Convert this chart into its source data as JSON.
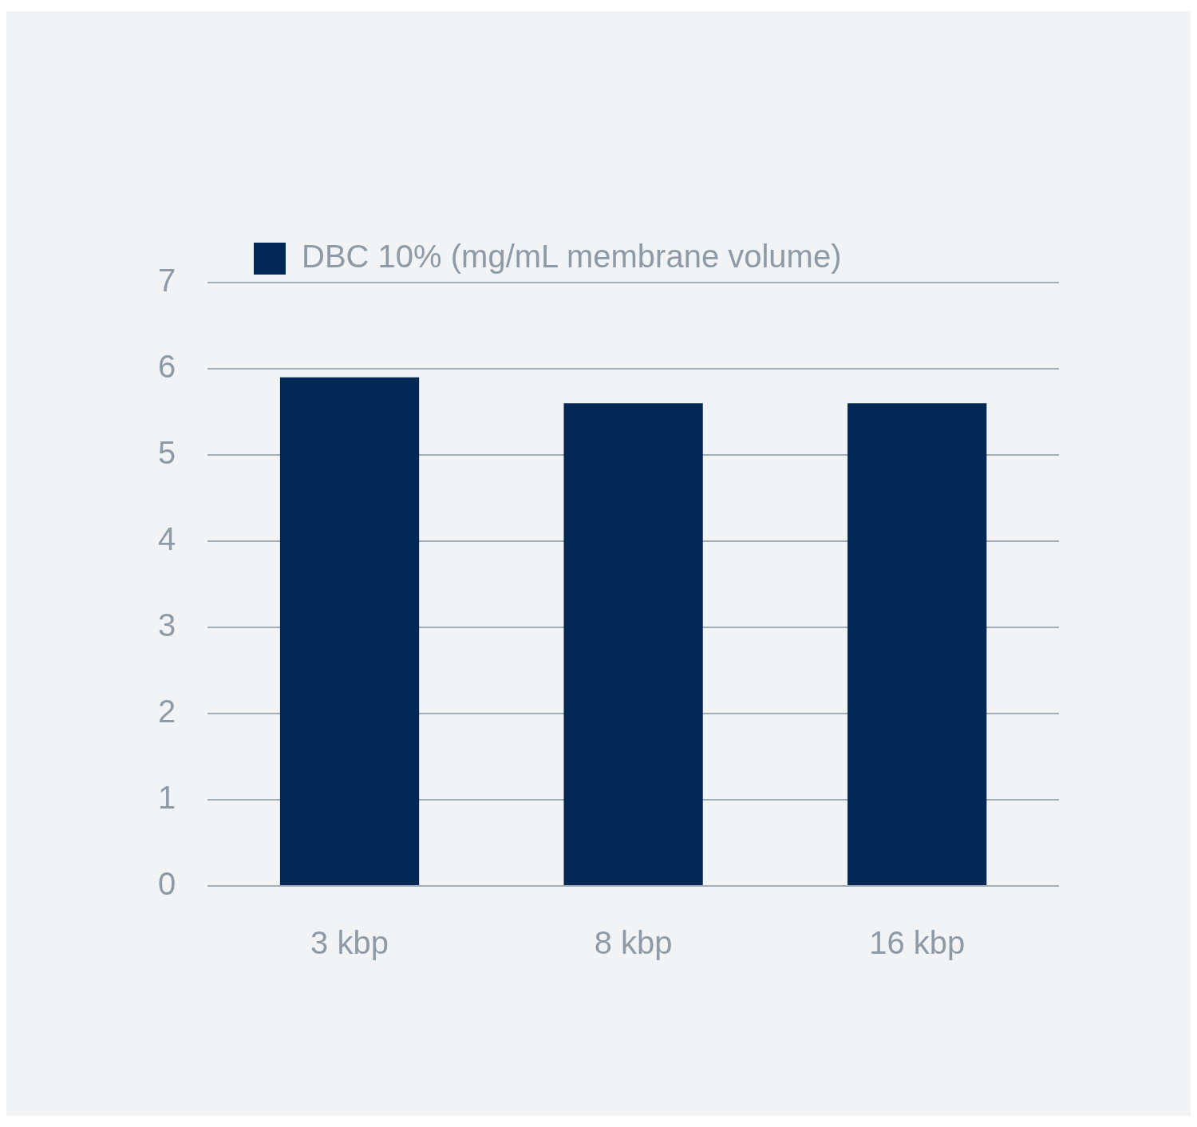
{
  "chart_data": {
    "type": "bar",
    "categories": [
      "3 kbp",
      "8 kbp",
      "16 kbp"
    ],
    "series": [
      {
        "name": "DBC 10% (mg/mL membrane volume)",
        "color": "#002855",
        "values": [
          5.9,
          5.6,
          5.6
        ]
      }
    ],
    "ylim": [
      0,
      7
    ],
    "yticks": [
      0,
      1,
      2,
      3,
      4,
      5,
      6,
      7
    ],
    "grid": "y",
    "legend": "top left"
  }
}
